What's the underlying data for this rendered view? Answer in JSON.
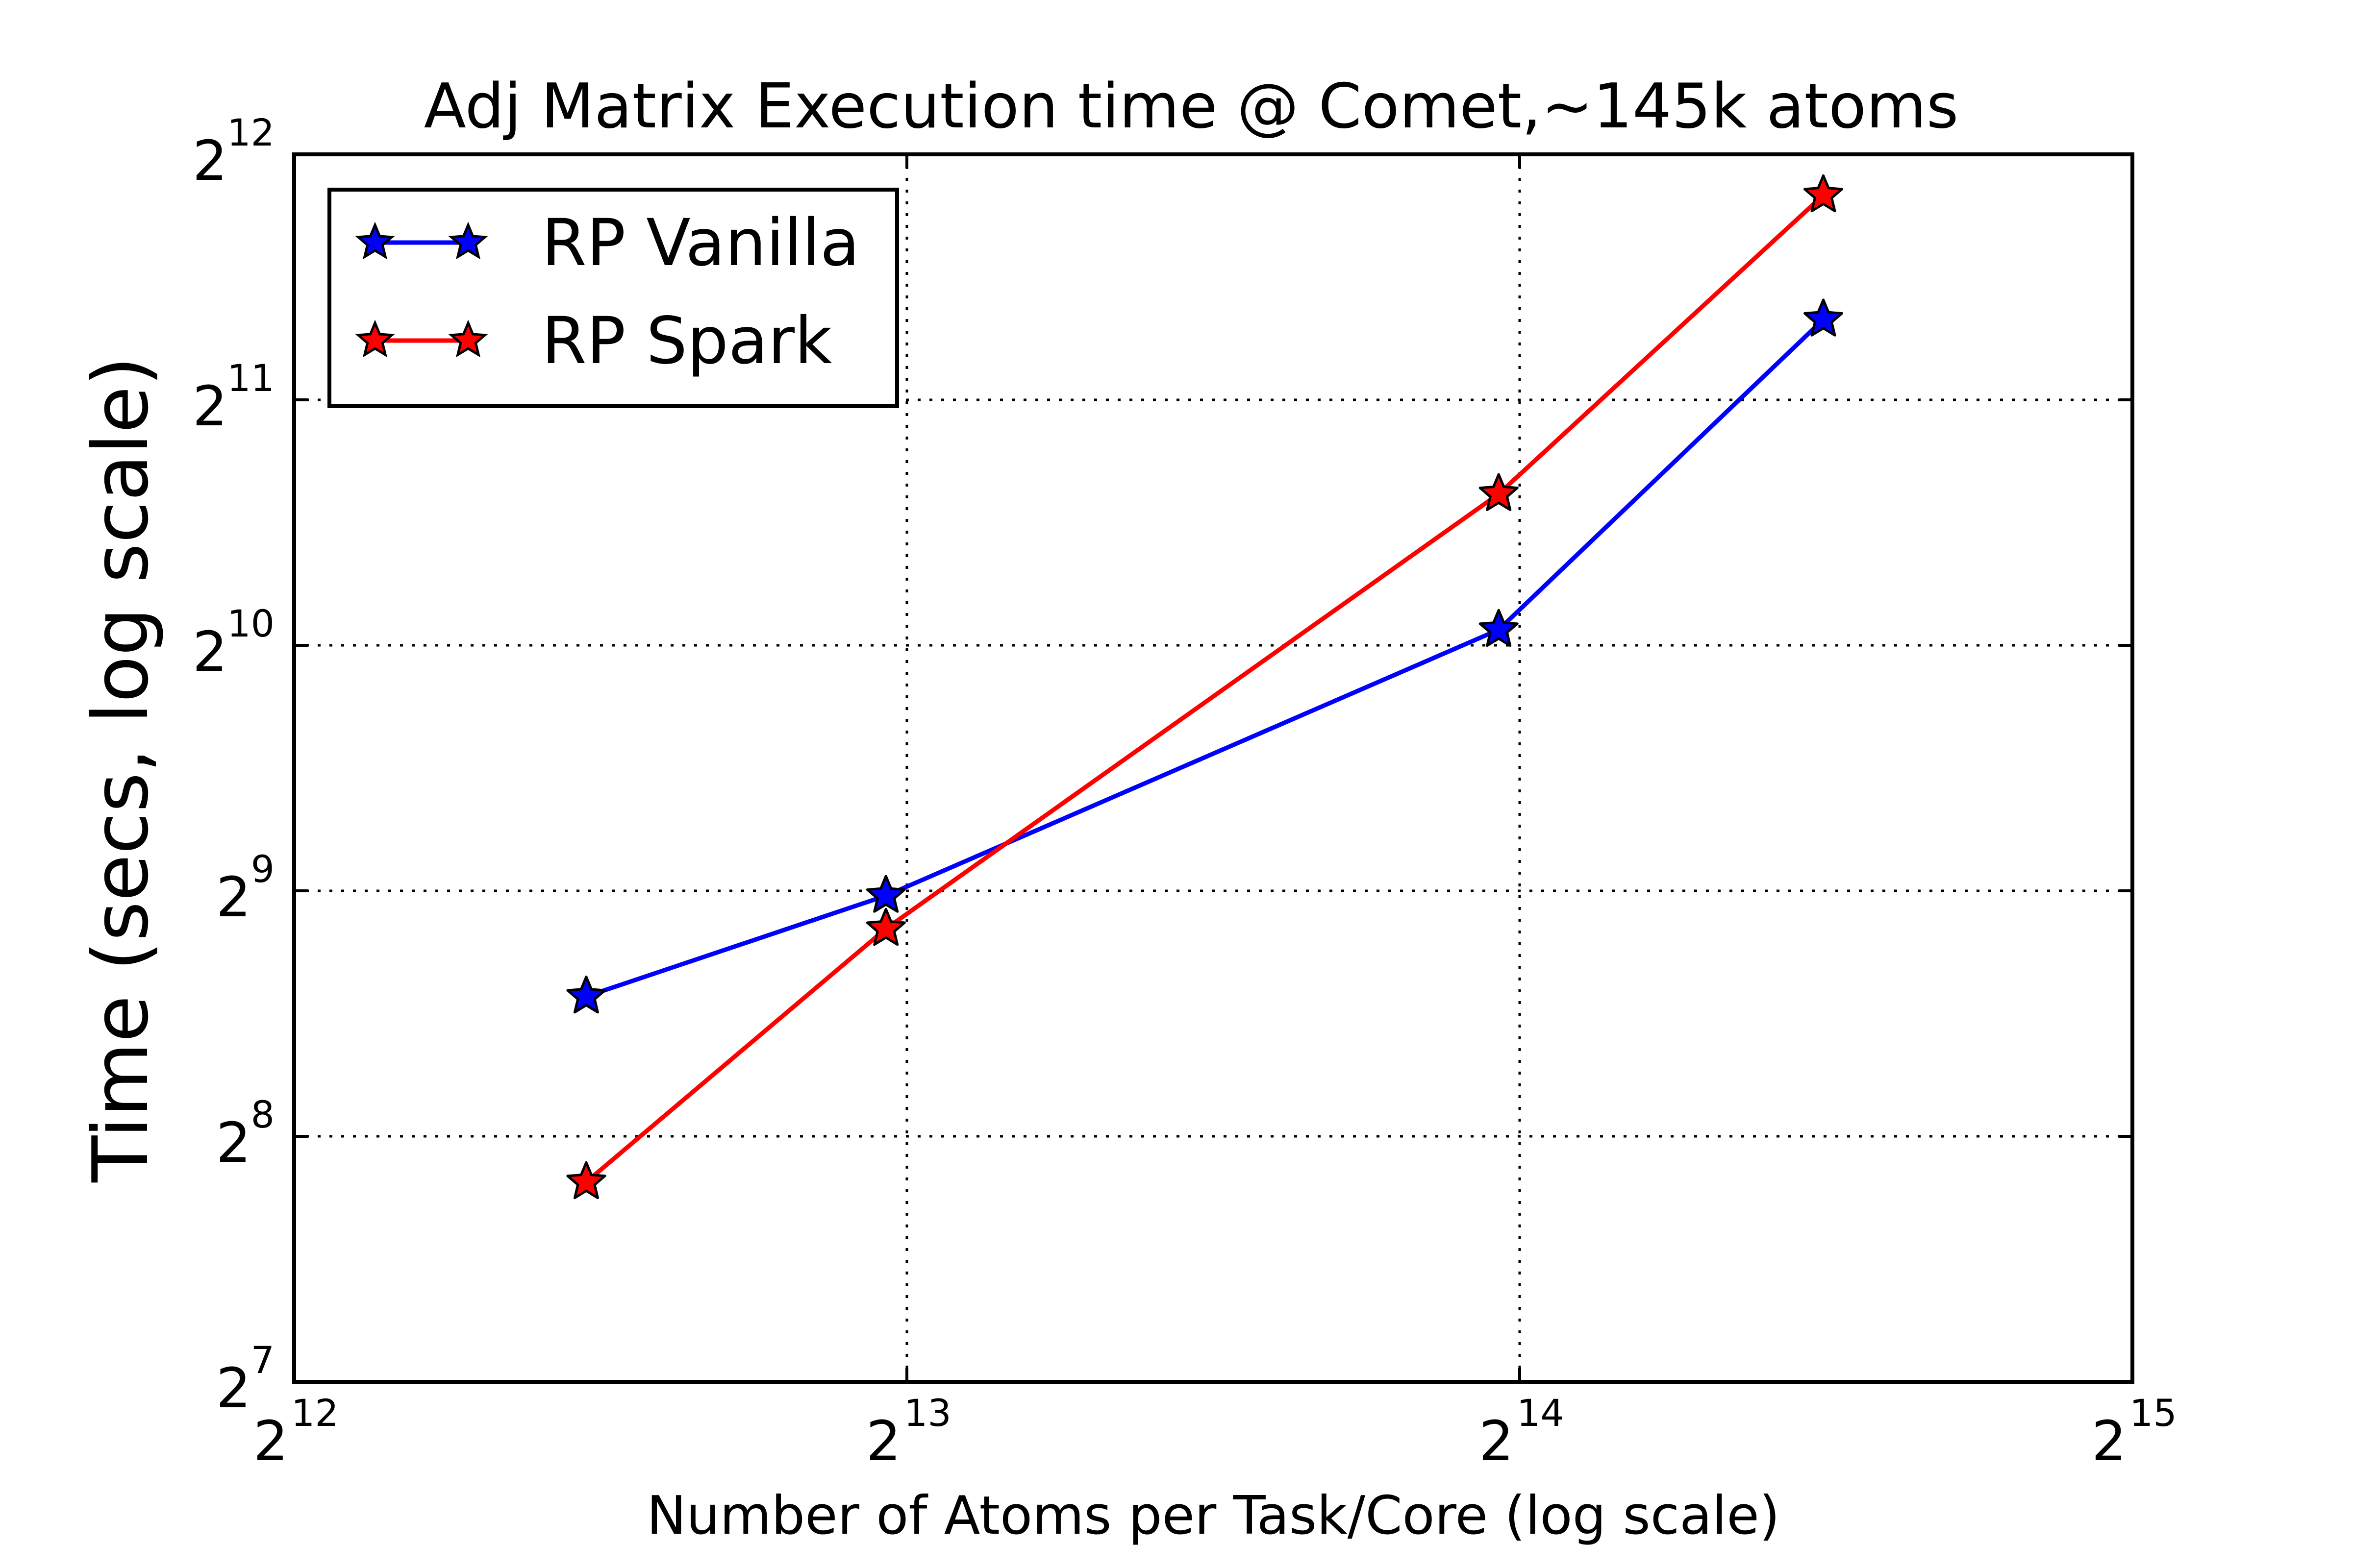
{
  "chart_data": {
    "type": "line",
    "title": "Adj Matrix Execution time @ Comet,~145k atoms",
    "xlabel": "Number of Atoms per Task/Core (log scale)",
    "ylabel": "Time (secs, log scale)",
    "x_scale": "log2",
    "y_scale": "log2",
    "xlim": [
      4096,
      32768
    ],
    "ylim": [
      128,
      4096
    ],
    "x_ticks": [
      {
        "base": "2",
        "exp": "12",
        "value": 4096
      },
      {
        "base": "2",
        "exp": "13",
        "value": 8192
      },
      {
        "base": "2",
        "exp": "14",
        "value": 16384
      },
      {
        "base": "2",
        "exp": "15",
        "value": 32768
      }
    ],
    "y_ticks": [
      {
        "base": "2",
        "exp": "7",
        "value": 128
      },
      {
        "base": "2",
        "exp": "8",
        "value": 256
      },
      {
        "base": "2",
        "exp": "9",
        "value": 512
      },
      {
        "base": "2",
        "exp": "10",
        "value": 1024
      },
      {
        "base": "2",
        "exp": "11",
        "value": 2048
      },
      {
        "base": "2",
        "exp": "12",
        "value": 4096
      }
    ],
    "grid": true,
    "grid_style": "dotted",
    "legend_position": "top-left",
    "series": [
      {
        "name": "RP Vanilla",
        "color": "#0000ff",
        "marker": "star",
        "x": [
          5700,
          8000,
          16000,
          23100
        ],
        "y": [
          380,
          505,
          1070,
          2570
        ]
      },
      {
        "name": "RP Spark",
        "color": "#ff0000",
        "marker": "star",
        "x": [
          5700,
          8000,
          16000,
          23100
        ],
        "y": [
          225,
          460,
          1570,
          3650
        ]
      }
    ]
  }
}
